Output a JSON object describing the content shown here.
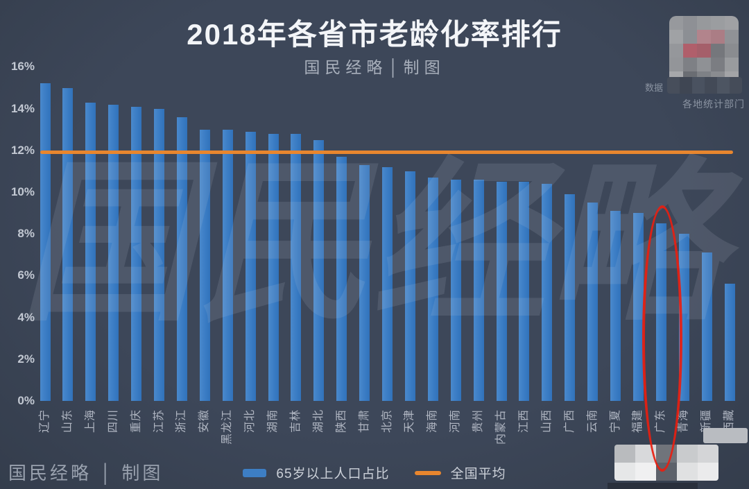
{
  "title": "2018年各省市老龄化率排行",
  "subtitle": "国民经略│制图",
  "watermark_text": "国民经略",
  "footer": {
    "brand": "国民经略 │ 制图"
  },
  "source_note": {
    "line1_fragment": "数据",
    "line2": "各地统计部门"
  },
  "legend": {
    "bars_label": "65岁以上人口占比",
    "line_label": "全国平均"
  },
  "colors": {
    "background": "#3b4456",
    "bar": "#3d7ec4",
    "reference_line": "#e8862e",
    "title_text": "#f3f5f8",
    "axis_text": "#c3c9d3",
    "highlight_ellipse": "#e81e10"
  },
  "chart_data": {
    "type": "bar",
    "title": "2018年各省市老龄化率排行",
    "series_label": "65岁以上人口占比",
    "unit": "%",
    "categories": [
      "辽宁",
      "山东",
      "上海",
      "四川",
      "重庆",
      "江苏",
      "浙江",
      "安徽",
      "黑龙江",
      "河北",
      "湖南",
      "吉林",
      "湖北",
      "陕西",
      "甘肃",
      "北京",
      "天津",
      "海南",
      "河南",
      "贵州",
      "内蒙古",
      "江西",
      "山西",
      "广西",
      "云南",
      "宁夏",
      "福建",
      "广东",
      "青海",
      "新疆",
      "西藏"
    ],
    "values": [
      15.2,
      15.0,
      14.3,
      14.2,
      14.1,
      14.0,
      13.6,
      13.0,
      13.0,
      12.9,
      12.8,
      12.8,
      12.5,
      11.7,
      11.3,
      11.2,
      11.0,
      10.7,
      10.6,
      10.6,
      10.5,
      10.5,
      10.4,
      9.9,
      9.5,
      9.1,
      9.0,
      8.5,
      8.0,
      7.1,
      5.6
    ],
    "reference_line": {
      "label": "全国平均",
      "value": 11.9
    },
    "ylim": [
      0,
      16
    ],
    "yticks": [
      "0%",
      "2%",
      "4%",
      "6%",
      "8%",
      "10%",
      "12%",
      "14%",
      "16%"
    ],
    "grid": false,
    "legend_position": "bottom",
    "highlighted_category": "广东"
  },
  "mosaics": {
    "logo_rows": [
      [
        "#97999d",
        "#8e9095",
        "#97999c",
        "#9b9da0",
        "#a0a1a4"
      ],
      [
        "#a0a2a5",
        "#8c8f94",
        "#b2848c",
        "#ab7d85",
        "#909296"
      ],
      [
        "#95979b",
        "#b05f6b",
        "#a55f6a",
        "#75777c",
        "#8a8c90"
      ],
      [
        "#939599",
        "#7e8085",
        "#8f9195",
        "#7b7d82",
        "#999b9e"
      ],
      [
        "#a7a8ab",
        "#6a6d73",
        "#7e8186",
        "#8a8c90",
        "#a3a4a7"
      ]
    ],
    "band_rows": [
      [
        "#474e5b",
        "#3f4653",
        "#4a5260",
        "#434a57",
        "#4d5562",
        "#454c59"
      ]
    ],
    "bottom_rows": [
      [
        "#b9bbbe",
        "#d8d9db",
        "#70747b",
        "#c9cbcd",
        "#d4d5d7"
      ],
      [
        "#e6e7e8",
        "#f0f0f1",
        "#5d626b",
        "#e0e1e2",
        "#ebebec"
      ]
    ],
    "extra_cells": [
      "#b9bcc1",
      "#8f9399",
      "#2a303c"
    ]
  }
}
